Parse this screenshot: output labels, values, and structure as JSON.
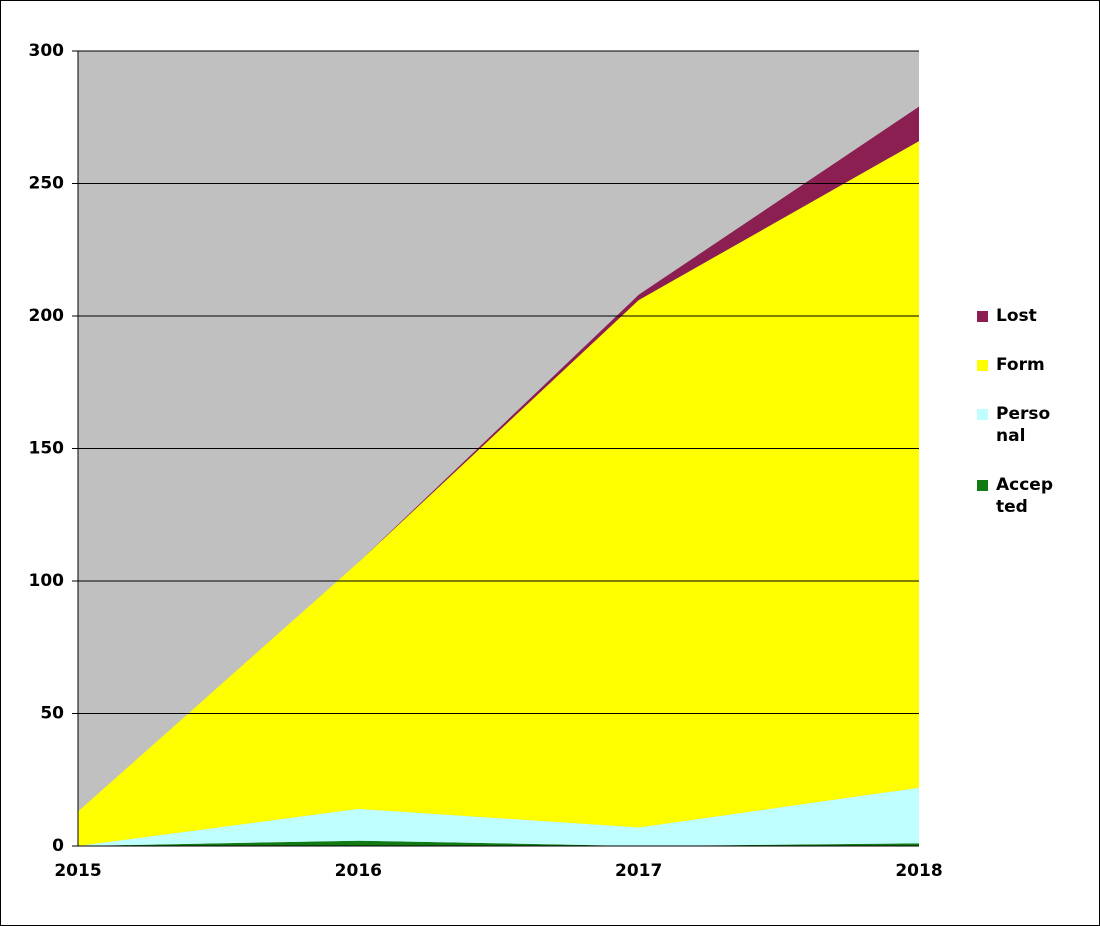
{
  "chart_data": {
    "type": "stacked-area",
    "categories": [
      "2015",
      "2016",
      "2017",
      "2018"
    ],
    "series": [
      {
        "name": "Accepted",
        "color": "#127a12",
        "values": [
          0,
          2,
          0,
          1
        ]
      },
      {
        "name": "Personal",
        "color": "#bfffff",
        "values": [
          0,
          12,
          7,
          21
        ]
      },
      {
        "name": "Form",
        "color": "#ffff00",
        "values": [
          13,
          93,
          199,
          244
        ]
      },
      {
        "name": "Lost",
        "color": "#8b1f52",
        "values": [
          0,
          0,
          2,
          13
        ]
      }
    ],
    "ylim": [
      0,
      300
    ],
    "yticks": [
      0,
      50,
      100,
      150,
      200,
      250,
      300
    ],
    "grid": true,
    "plot_background": "#c0c0c0",
    "legend": "right"
  }
}
